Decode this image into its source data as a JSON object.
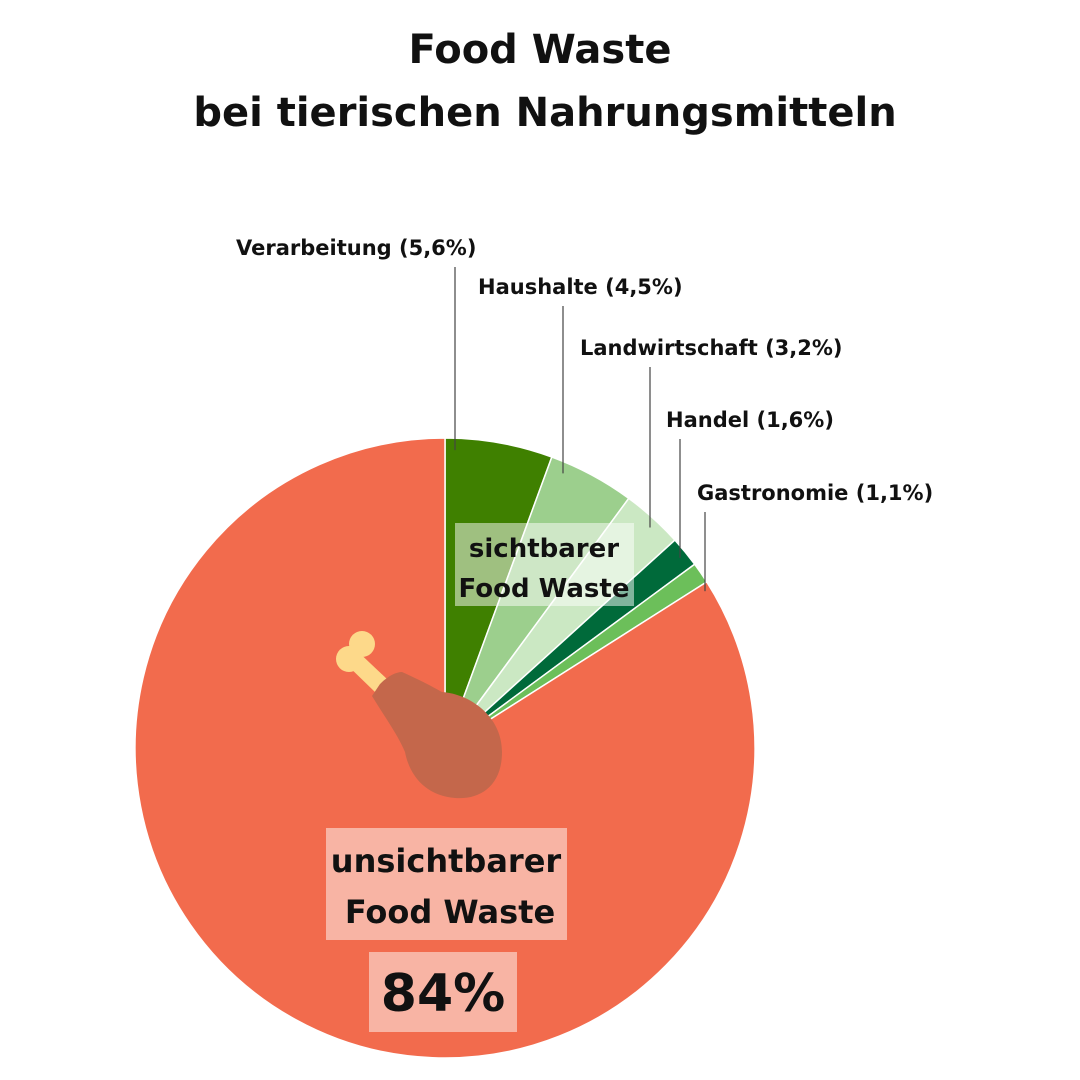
{
  "chart_data": {
    "type": "pie",
    "title_lines": [
      "Food Waste",
      "bei tierischen Nahrungsmitteln"
    ],
    "slices": [
      {
        "label": "Verarbeitung (5,6%)",
        "value": 5.6,
        "color": "#3f8000"
      },
      {
        "label": "Haushalte (4,5%)",
        "value": 4.5,
        "color": "#9ccf8d"
      },
      {
        "label": "Landwirtschaft (3,2%)",
        "value": 3.2,
        "color": "#cbe8c3"
      },
      {
        "label": "Handel (1,6%)",
        "value": 1.6,
        "color": "#006a3a"
      },
      {
        "label": "Gastronomie (1,1%)",
        "value": 1.1,
        "color": "#6cbf5a"
      },
      {
        "label": "unsichtbarer Food Waste",
        "value": 84,
        "color": "#f26b4d"
      }
    ],
    "visible_box": {
      "lines": [
        "sichtbarer",
        "Food Waste"
      ]
    },
    "invisible_box": {
      "lines": [
        "unsichtbarer",
        "Food Waste"
      ],
      "value": "84%"
    },
    "icon": "chicken-drumstick-icon"
  }
}
